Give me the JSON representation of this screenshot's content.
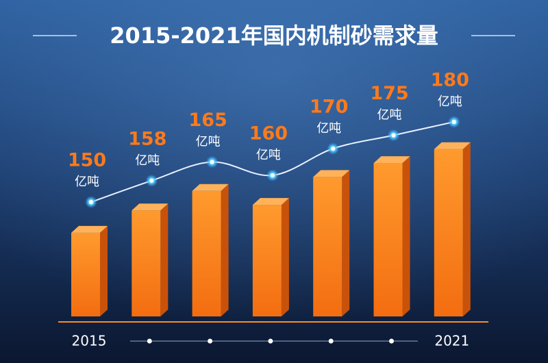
{
  "chart_data": {
    "type": "bar3d-line",
    "title": "2015-2021年国内机制砂需求量",
    "unit": "亿吨",
    "categories": [
      "2015",
      null,
      null,
      null,
      null,
      null,
      "2021"
    ],
    "values": [
      150,
      158,
      165,
      160,
      170,
      175,
      180
    ],
    "color": "#ff8a1e",
    "ylim": [
      120,
      190
    ]
  }
}
